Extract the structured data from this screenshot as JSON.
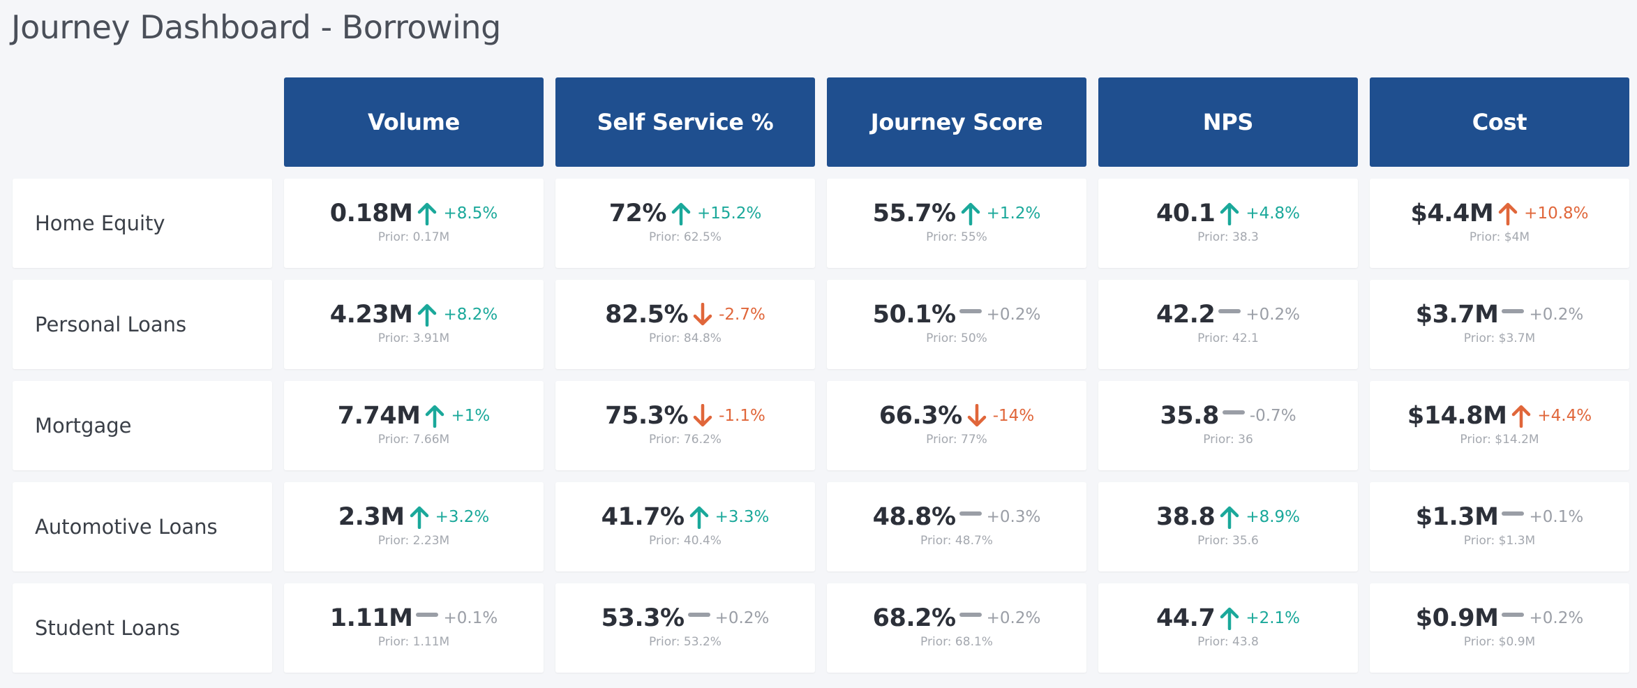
{
  "page": {
    "title": "Journey Dashboard - Borrowing"
  },
  "colors": {
    "header_bg": "#1f4f8f",
    "up": "#1aa89a",
    "down": "#e0663a",
    "flat": "#9a9ea6"
  },
  "columns": [
    "Volume",
    "Self Service %",
    "Journey Score",
    "NPS",
    "Cost"
  ],
  "rows": [
    {
      "label": "Home Equity",
      "cells": [
        {
          "value": "0.18M",
          "change": "+8.5%",
          "trend": "up",
          "prior": "Prior: 0.17M"
        },
        {
          "value": "72%",
          "change": "+15.2%",
          "trend": "up",
          "prior": "Prior: 62.5%"
        },
        {
          "value": "55.7%",
          "change": "+1.2%",
          "trend": "up",
          "prior": "Prior: 55%"
        },
        {
          "value": "40.1",
          "change": "+4.8%",
          "trend": "up",
          "prior": "Prior: 38.3"
        },
        {
          "value": "$4.4M",
          "change": "+10.8%",
          "trend": "up-bad",
          "prior": "Prior: $4M"
        }
      ]
    },
    {
      "label": "Personal Loans",
      "cells": [
        {
          "value": "4.23M",
          "change": "+8.2%",
          "trend": "up",
          "prior": "Prior: 3.91M"
        },
        {
          "value": "82.5%",
          "change": "-2.7%",
          "trend": "down",
          "prior": "Prior: 84.8%"
        },
        {
          "value": "50.1%",
          "change": "+0.2%",
          "trend": "flat",
          "prior": "Prior: 50%"
        },
        {
          "value": "42.2",
          "change": "+0.2%",
          "trend": "flat",
          "prior": "Prior: 42.1"
        },
        {
          "value": "$3.7M",
          "change": "+0.2%",
          "trend": "flat",
          "prior": "Prior: $3.7M"
        }
      ]
    },
    {
      "label": "Mortgage",
      "cells": [
        {
          "value": "7.74M",
          "change": "+1%",
          "trend": "up",
          "prior": "Prior: 7.66M"
        },
        {
          "value": "75.3%",
          "change": "-1.1%",
          "trend": "down",
          "prior": "Prior: 76.2%"
        },
        {
          "value": "66.3%",
          "change": "-14%",
          "trend": "down",
          "prior": "Prior: 77%"
        },
        {
          "value": "35.8",
          "change": "-0.7%",
          "trend": "flat",
          "prior": "Prior: 36"
        },
        {
          "value": "$14.8M",
          "change": "+4.4%",
          "trend": "up-bad",
          "prior": "Prior: $14.2M"
        }
      ]
    },
    {
      "label": "Automotive Loans",
      "cells": [
        {
          "value": "2.3M",
          "change": "+3.2%",
          "trend": "up",
          "prior": "Prior: 2.23M"
        },
        {
          "value": "41.7%",
          "change": "+3.3%",
          "trend": "up",
          "prior": "Prior: 40.4%"
        },
        {
          "value": "48.8%",
          "change": "+0.3%",
          "trend": "flat",
          "prior": "Prior: 48.7%"
        },
        {
          "value": "38.8",
          "change": "+8.9%",
          "trend": "up",
          "prior": "Prior: 35.6"
        },
        {
          "value": "$1.3M",
          "change": "+0.1%",
          "trend": "flat",
          "prior": "Prior: $1.3M"
        }
      ]
    },
    {
      "label": "Student Loans",
      "cells": [
        {
          "value": "1.11M",
          "change": "+0.1%",
          "trend": "flat",
          "prior": "Prior: 1.11M"
        },
        {
          "value": "53.3%",
          "change": "+0.2%",
          "trend": "flat",
          "prior": "Prior: 53.2%"
        },
        {
          "value": "68.2%",
          "change": "+0.2%",
          "trend": "flat",
          "prior": "Prior: 68.1%"
        },
        {
          "value": "44.7",
          "change": "+2.1%",
          "trend": "up",
          "prior": "Prior: 43.8"
        },
        {
          "value": "$0.9M",
          "change": "+0.2%",
          "trend": "flat",
          "prior": "Prior: $0.9M"
        }
      ]
    }
  ]
}
